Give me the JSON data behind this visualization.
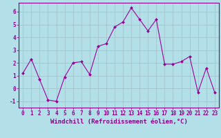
{
  "x": [
    0,
    1,
    2,
    3,
    4,
    5,
    6,
    7,
    8,
    9,
    10,
    11,
    12,
    13,
    14,
    15,
    16,
    17,
    18,
    19,
    20,
    21,
    22,
    23
  ],
  "y": [
    1.2,
    2.3,
    0.7,
    -0.9,
    -1.0,
    0.9,
    2.0,
    2.1,
    1.1,
    3.3,
    3.5,
    4.8,
    5.2,
    6.3,
    5.4,
    4.5,
    5.4,
    1.9,
    1.9,
    2.1,
    2.5,
    -0.3,
    1.6,
    -0.3
  ],
  "line_color": "#990099",
  "marker_color": "#990099",
  "bg_color": "#b3e0e8",
  "grid_color": "#a0bfc8",
  "xlabel": "Windchill (Refroidissement éolien,°C)",
  "xlabel_color": "#880088",
  "xlabel_fontsize": 6.5,
  "tick_color": "#880088",
  "tick_fontsize": 5.5,
  "ylim": [
    -1.5,
    6.7
  ],
  "xlim": [
    -0.5,
    23.5
  ],
  "yticks": [
    -1,
    0,
    1,
    2,
    3,
    4,
    5,
    6
  ],
  "xticks": [
    0,
    1,
    2,
    3,
    4,
    5,
    6,
    7,
    8,
    9,
    10,
    11,
    12,
    13,
    14,
    15,
    16,
    17,
    18,
    19,
    20,
    21,
    22,
    23
  ]
}
